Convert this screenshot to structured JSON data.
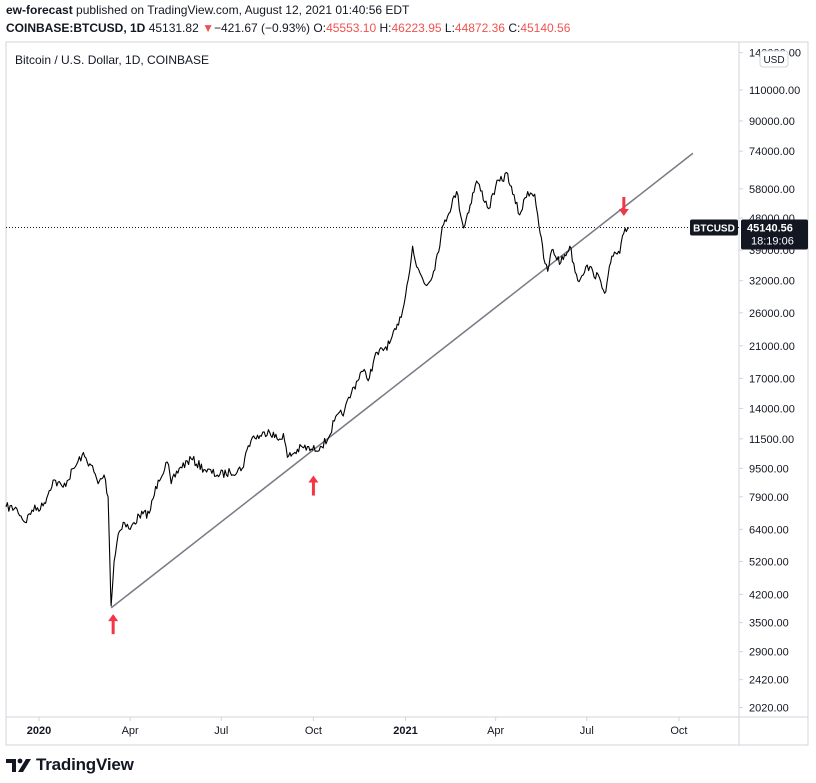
{
  "header": {
    "author": "ew-forecast",
    "published_text": "published on TradingView.com, August 12, 2021 01:40:56 EDT",
    "symbol": "COINBASE:BTCUSD, 1D",
    "last": "45131.82",
    "arrow": "▼",
    "change": "−421.67 (−0.93%)",
    "o_label": "O:",
    "o_value": "45553.10",
    "h_label": "H:",
    "h_value": "46223.95",
    "l_label": "L:",
    "l_value": "44872.36",
    "c_label": "C:",
    "c_value": "45140.56"
  },
  "brand": {
    "name": "TradingView"
  },
  "colors": {
    "price": "#000000",
    "arrow": "#f23645",
    "trendline": "#787b86",
    "badge_bg": "#131722",
    "grid": "#d1d4dc"
  },
  "chart_data": {
    "type": "line",
    "title": "Bitcoin / U.S. Dollar, 1D, COINBASE",
    "currency_badge": "USD",
    "y_scale": "log",
    "ylim": [
      1900,
      150000
    ],
    "xlim": [
      "2019-11-29",
      "2021-11-30"
    ],
    "y_ticks": [
      "140000.00",
      "110000.00",
      "90000.00",
      "74000.00",
      "58000.00",
      "48000.00",
      "39000.00",
      "32000.00",
      "26000.00",
      "21000.00",
      "17000.00",
      "14000.00",
      "11500.00",
      "9500.00",
      "7900.00",
      "6400.00",
      "5200.00",
      "4200.00",
      "3500.00",
      "2900.00",
      "2420.00",
      "2020.00"
    ],
    "x_ticks": [
      {
        "label": "2020",
        "date": "2020-01-01",
        "bold": true
      },
      {
        "label": "Apr",
        "date": "2020-04-01"
      },
      {
        "label": "Jul",
        "date": "2020-07-01"
      },
      {
        "label": "Oct",
        "date": "2020-10-01"
      },
      {
        "label": "2021",
        "date": "2021-01-01",
        "bold": true
      },
      {
        "label": "Apr",
        "date": "2021-04-01"
      },
      {
        "label": "Jul",
        "date": "2021-07-01"
      },
      {
        "label": "Oct",
        "date": "2021-10-01"
      }
    ],
    "series": [
      {
        "values": [
          [
            "2019-11-29",
            7400
          ],
          [
            "2019-12-10",
            7300
          ],
          [
            "2019-12-18",
            6700
          ],
          [
            "2019-12-25",
            7250
          ],
          [
            "2020-01-05",
            7450
          ],
          [
            "2020-01-15",
            8800
          ],
          [
            "2020-01-25",
            8400
          ],
          [
            "2020-02-05",
            9500
          ],
          [
            "2020-02-13",
            10350
          ],
          [
            "2020-02-22",
            9700
          ],
          [
            "2020-02-29",
            8600
          ],
          [
            "2020-03-06",
            9100
          ],
          [
            "2020-03-10",
            7900
          ],
          [
            "2020-03-12",
            4900
          ],
          [
            "2020-03-13",
            3900
          ],
          [
            "2020-03-16",
            5200
          ],
          [
            "2020-03-20",
            6200
          ],
          [
            "2020-03-25",
            6700
          ],
          [
            "2020-04-01",
            6400
          ],
          [
            "2020-04-10",
            7000
          ],
          [
            "2020-04-20",
            7100
          ],
          [
            "2020-04-29",
            8800
          ],
          [
            "2020-05-08",
            9900
          ],
          [
            "2020-05-12",
            8600
          ],
          [
            "2020-05-20",
            9500
          ],
          [
            "2020-06-01",
            10100
          ],
          [
            "2020-06-15",
            9400
          ],
          [
            "2020-06-27",
            9100
          ],
          [
            "2020-07-10",
            9250
          ],
          [
            "2020-07-22",
            9500
          ],
          [
            "2020-07-28",
            11000
          ],
          [
            "2020-08-01",
            11600
          ],
          [
            "2020-08-10",
            11700
          ],
          [
            "2020-08-17",
            12200
          ],
          [
            "2020-08-27",
            11400
          ],
          [
            "2020-09-01",
            11900
          ],
          [
            "2020-09-05",
            10200
          ],
          [
            "2020-09-20",
            10900
          ],
          [
            "2020-09-30",
            10700
          ],
          [
            "2020-10-08",
            10950
          ],
          [
            "2020-10-15",
            11400
          ],
          [
            "2020-10-22",
            12900
          ],
          [
            "2020-11-01",
            13800
          ],
          [
            "2020-11-08",
            15500
          ],
          [
            "2020-11-18",
            17800
          ],
          [
            "2020-11-26",
            17100
          ],
          [
            "2020-12-01",
            19500
          ],
          [
            "2020-12-16",
            21300
          ],
          [
            "2020-12-25",
            24000
          ],
          [
            "2021-01-01",
            29000
          ],
          [
            "2021-01-08",
            40000
          ],
          [
            "2021-01-12",
            35000
          ],
          [
            "2021-01-22",
            31000
          ],
          [
            "2021-01-29",
            34000
          ],
          [
            "2021-02-08",
            46000
          ],
          [
            "2021-02-21",
            57000
          ],
          [
            "2021-02-28",
            45000
          ],
          [
            "2021-03-13",
            61000
          ],
          [
            "2021-03-25",
            51000
          ],
          [
            "2021-04-01",
            59000
          ],
          [
            "2021-04-13",
            64000
          ],
          [
            "2021-04-18",
            56000
          ],
          [
            "2021-04-25",
            49000
          ],
          [
            "2021-05-03",
            57000
          ],
          [
            "2021-05-10",
            56000
          ],
          [
            "2021-05-13",
            49000
          ],
          [
            "2021-05-19",
            37000
          ],
          [
            "2021-05-23",
            34000
          ],
          [
            "2021-05-27",
            39000
          ],
          [
            "2021-06-05",
            36000
          ],
          [
            "2021-06-14",
            40000
          ],
          [
            "2021-06-22",
            32000
          ],
          [
            "2021-06-30",
            35000
          ],
          [
            "2021-07-07",
            34000
          ],
          [
            "2021-07-15",
            31800
          ],
          [
            "2021-07-20",
            29800
          ],
          [
            "2021-07-26",
            37500
          ],
          [
            "2021-08-03",
            38200
          ],
          [
            "2021-08-07",
            43500
          ],
          [
            "2021-08-12",
            45140
          ]
        ]
      }
    ],
    "current_price_label": "BTCUSD",
    "current_price": "45140.56",
    "countdown": "18:19:06",
    "annotations": [
      {
        "type": "trendline",
        "from": [
          "2020-03-13",
          3850
        ],
        "to": [
          "2021-10-15",
          73000
        ]
      },
      {
        "type": "arrow-up",
        "at": [
          "2020-03-15",
          3650
        ]
      },
      {
        "type": "arrow-up",
        "at": [
          "2020-10-01",
          8950
        ]
      },
      {
        "type": "arrow-down",
        "at": [
          "2021-08-07",
          55000
        ]
      }
    ]
  }
}
